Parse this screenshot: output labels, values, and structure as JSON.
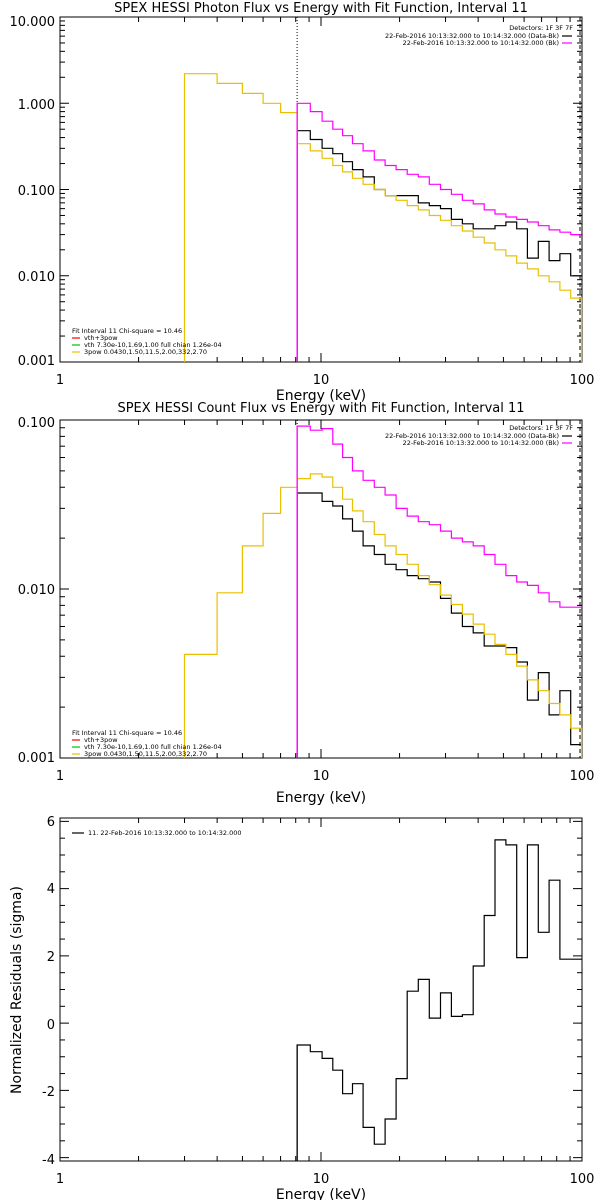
{
  "colors": {
    "data": "#000000",
    "background": "#ff00ff",
    "fit_total": "#ff0000",
    "vth": "#00c000",
    "model": "#e8c000",
    "axis": "#000000"
  },
  "chart_data": [
    {
      "type": "line",
      "title": "SPEX HESSI Photon Flux vs Energy with Fit Function, Interval 11",
      "xlabel": "Energy (keV)",
      "ylabel": "",
      "xscale": "log",
      "yscale": "log",
      "xlim": [
        1,
        100
      ],
      "ylim": [
        0.001,
        10
      ],
      "x_ticks": [
        1,
        10,
        100
      ],
      "x_tick_labels": [
        "1",
        "10",
        "100"
      ],
      "y_ticks": [
        0.001,
        0.01,
        0.1,
        1,
        10
      ],
      "y_tick_labels": [
        "0.001",
        "0.010",
        "0.100",
        "1.000",
        "10.000"
      ],
      "fit_energy_keV": 8.1,
      "legend_top_right": {
        "header": "Detectors: 1F 3F 7F",
        "entries": [
          {
            "text": "22-Feb-2016 10:13:32.000 to 10:14:32.000 (Data-Bk)",
            "color_key": "data"
          },
          {
            "text": "22-Feb-2016 10:13:32.000 to 10:14:32.000 (Bk)",
            "color_key": "background"
          }
        ]
      },
      "legend_bottom_left": {
        "header": "Fit Interval 11   Chi-square = 10.46",
        "entries": [
          {
            "text": "vth+3pow",
            "color_key": "fit_total"
          },
          {
            "text": "vth 7.30e-10,1.69,1.00  full chian 1.26e-04",
            "color_key": "vth"
          },
          {
            "text": "3pow 0.0430,1.50,11.5,2.00,332,2.70",
            "color_key": "model"
          }
        ]
      },
      "series": [
        {
          "name": "Data-Bk",
          "color_key": "data",
          "edges": [
            8.1,
            9.1,
            10.1,
            11.1,
            12.1,
            13.2,
            14.5,
            16.0,
            17.6,
            19.4,
            21.4,
            23.6,
            26.0,
            28.7,
            31.6,
            34.8,
            38.3,
            42.2,
            46.4,
            51.1,
            56.2,
            61.8,
            68.0,
            74.8,
            82.3,
            90.5,
            99.6
          ],
          "values": [
            0.48,
            0.38,
            0.3,
            0.26,
            0.21,
            0.17,
            0.14,
            0.1,
            0.085,
            0.085,
            0.085,
            0.07,
            0.065,
            0.06,
            0.045,
            0.04,
            0.035,
            0.035,
            0.038,
            0.042,
            0.035,
            0.016,
            0.025,
            0.015,
            0.018,
            0.01,
            0.01
          ]
        },
        {
          "name": "Bk",
          "color_key": "background",
          "edges": [
            8.1,
            9.1,
            10.1,
            11.1,
            12.1,
            13.2,
            14.5,
            16.0,
            17.6,
            19.4,
            21.4,
            23.6,
            26.0,
            28.7,
            31.6,
            34.8,
            38.3,
            42.2,
            46.4,
            51.1,
            56.2,
            61.8,
            68.0,
            74.8,
            82.3,
            90.5,
            99.6
          ],
          "values": [
            1.0,
            0.8,
            0.62,
            0.5,
            0.42,
            0.34,
            0.28,
            0.22,
            0.19,
            0.17,
            0.15,
            0.14,
            0.115,
            0.1,
            0.088,
            0.075,
            0.068,
            0.058,
            0.052,
            0.048,
            0.045,
            0.042,
            0.038,
            0.034,
            0.032,
            0.03,
            0.03
          ]
        },
        {
          "name": "3pow",
          "color_key": "model",
          "edges": [
            3.0,
            4.0,
            5.0,
            6.0,
            7.0,
            8.1,
            9.1,
            10.1,
            11.1,
            12.1,
            13.2,
            14.5,
            16.0,
            17.6,
            19.4,
            21.4,
            23.6,
            26.0,
            28.7,
            31.6,
            34.8,
            38.3,
            42.2,
            46.4,
            51.1,
            56.2,
            61.8,
            68.0,
            74.8,
            82.3,
            90.5,
            99.6
          ],
          "values": [
            2.2,
            1.7,
            1.3,
            1.0,
            0.78,
            0.34,
            0.28,
            0.23,
            0.19,
            0.16,
            0.135,
            0.115,
            0.1,
            0.085,
            0.075,
            0.065,
            0.058,
            0.05,
            0.044,
            0.038,
            0.033,
            0.028,
            0.024,
            0.02,
            0.017,
            0.014,
            0.012,
            0.01,
            0.0085,
            0.0068,
            0.0055
          ]
        }
      ]
    },
    {
      "type": "line",
      "title": "SPEX HESSI Count Flux vs Energy with Fit Function, Interval 11",
      "xlabel": "Energy (keV)",
      "ylabel": "",
      "xscale": "log",
      "yscale": "log",
      "xlim": [
        1,
        100
      ],
      "ylim": [
        0.001,
        0.1
      ],
      "x_ticks": [
        1,
        10,
        100
      ],
      "x_tick_labels": [
        "1",
        "10",
        "100"
      ],
      "y_ticks": [
        0.001,
        0.01,
        0.1
      ],
      "y_tick_labels": [
        "0.001",
        "0.010",
        "0.100"
      ],
      "fit_energy_keV": 8.1,
      "legend_top_right": {
        "header": "Detectors: 1F 3F 7F",
        "entries": [
          {
            "text": "22-Feb-2016 10:13:32.000 to 10:14:32.000 (Data-Bk)",
            "color_key": "data"
          },
          {
            "text": "22-Feb-2016 10:13:32.000 to 10:14:32.000 (Bk)",
            "color_key": "background"
          }
        ]
      },
      "legend_bottom_left": {
        "header": "Fit Interval 11   Chi-square = 10.46",
        "entries": [
          {
            "text": "vth+3pow",
            "color_key": "fit_total"
          },
          {
            "text": "vth 7.30e-10,1.69,1.00  full chian 1.26e-04",
            "color_key": "vth"
          },
          {
            "text": "3pow 0.0430,1.50,11.5,2.00,332,2.70",
            "color_key": "model"
          }
        ]
      },
      "series": [
        {
          "name": "Data-Bk",
          "color_key": "data",
          "edges": [
            8.1,
            9.1,
            10.1,
            11.1,
            12.1,
            13.2,
            14.5,
            16.0,
            17.6,
            19.4,
            21.4,
            23.6,
            26.0,
            28.7,
            31.6,
            34.8,
            38.3,
            42.2,
            46.4,
            51.1,
            56.2,
            61.8,
            68.0,
            74.8,
            82.3,
            90.5,
            99.6
          ],
          "values": [
            0.037,
            0.037,
            0.033,
            0.031,
            0.026,
            0.022,
            0.018,
            0.016,
            0.014,
            0.013,
            0.012,
            0.0115,
            0.011,
            0.0088,
            0.0072,
            0.006,
            0.0055,
            0.0046,
            0.0046,
            0.0045,
            0.0037,
            0.0022,
            0.0032,
            0.0018,
            0.0025,
            0.0012,
            0.0012
          ]
        },
        {
          "name": "Bk",
          "color_key": "background",
          "edges": [
            8.1,
            9.1,
            10.1,
            11.1,
            12.1,
            13.2,
            14.5,
            16.0,
            17.6,
            19.4,
            21.4,
            23.6,
            26.0,
            28.7,
            31.6,
            34.8,
            38.3,
            42.2,
            46.4,
            51.1,
            56.2,
            61.8,
            68.0,
            74.8,
            82.3,
            90.5,
            99.6
          ],
          "values": [
            0.092,
            0.087,
            0.089,
            0.072,
            0.06,
            0.05,
            0.044,
            0.04,
            0.036,
            0.03,
            0.027,
            0.025,
            0.024,
            0.022,
            0.02,
            0.019,
            0.018,
            0.016,
            0.014,
            0.012,
            0.011,
            0.0105,
            0.0095,
            0.0084,
            0.0078,
            0.0078,
            0.0075
          ]
        },
        {
          "name": "3pow",
          "color_key": "model",
          "edges": [
            3.0,
            4.0,
            5.0,
            6.0,
            7.0,
            8.1,
            9.1,
            10.1,
            11.1,
            12.1,
            13.2,
            14.5,
            16.0,
            17.6,
            19.4,
            21.4,
            23.6,
            26.0,
            28.7,
            31.6,
            34.8,
            38.3,
            42.2,
            46.4,
            51.1,
            56.2,
            61.8,
            68.0,
            74.8,
            82.3,
            90.5,
            99.6
          ],
          "values": [
            0.0041,
            0.0095,
            0.018,
            0.028,
            0.04,
            0.045,
            0.048,
            0.046,
            0.04,
            0.034,
            0.029,
            0.025,
            0.021,
            0.018,
            0.016,
            0.014,
            0.012,
            0.0106,
            0.0092,
            0.0081,
            0.0071,
            0.0062,
            0.0054,
            0.0047,
            0.0041,
            0.0035,
            0.0029,
            0.0025,
            0.0021,
            0.0018,
            0.0015
          ]
        }
      ]
    },
    {
      "type": "line",
      "title": "",
      "xlabel": "Energy (keV)",
      "ylabel": "Normalized Residuals (sigma)",
      "xscale": "log",
      "yscale": "linear",
      "xlim": [
        1,
        100
      ],
      "ylim": [
        -4.1,
        6.1
      ],
      "x_ticks": [
        1,
        10,
        100
      ],
      "x_tick_labels": [
        "1",
        "10",
        "100"
      ],
      "y_ticks": [
        -4,
        -2,
        0,
        2,
        4,
        6
      ],
      "y_tick_labels": [
        "-4",
        "-2",
        "0",
        "2",
        "4",
        "6"
      ],
      "legend_top_left": {
        "entries": [
          {
            "text": "11. 22-Feb-2016 10:13:32.000 to 10:14:32.000",
            "color_key": "data"
          }
        ]
      },
      "series": [
        {
          "name": "11. 22-Feb-2016 10:13:32.000 to 10:14:32.000",
          "color_key": "data",
          "edges": [
            8.1,
            9.1,
            10.1,
            11.1,
            12.1,
            13.2,
            14.5,
            16.0,
            17.6,
            19.4,
            21.4,
            23.6,
            26.0,
            28.7,
            31.6,
            34.8,
            38.3,
            42.2,
            46.4,
            51.1,
            56.2,
            61.8,
            68.0,
            74.8,
            82.3,
            90.5,
            99.6
          ],
          "values": [
            -0.65,
            -0.85,
            -1.05,
            -1.4,
            -2.1,
            -1.8,
            -3.1,
            -3.6,
            -2.85,
            -1.65,
            0.95,
            1.3,
            0.15,
            0.9,
            0.2,
            0.25,
            1.7,
            3.2,
            5.45,
            5.3,
            1.95,
            5.3,
            2.7,
            4.25,
            1.9,
            1.9
          ]
        }
      ]
    }
  ]
}
